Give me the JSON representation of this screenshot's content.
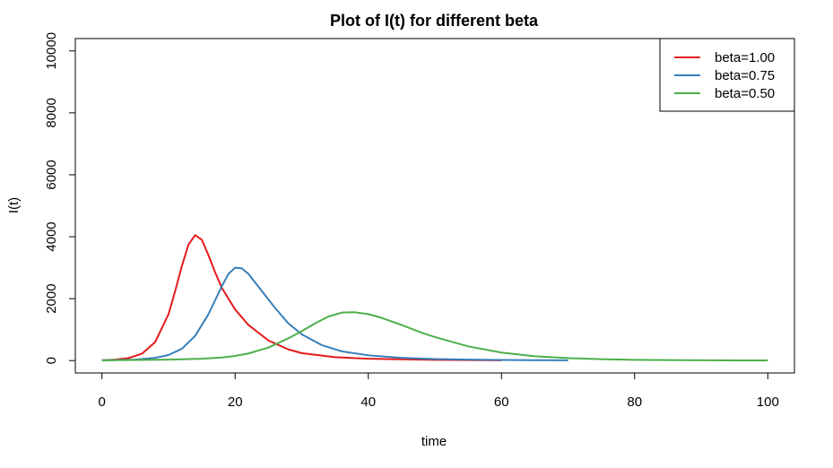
{
  "chart_data": {
    "type": "line",
    "title": "Plot of I(t) for different beta",
    "xlabel": "time",
    "ylabel": "I(t)",
    "xlim": [
      -4,
      104
    ],
    "ylim": [
      -400,
      10400
    ],
    "x_ticks": [
      0,
      20,
      40,
      60,
      80,
      100
    ],
    "y_ticks": [
      0,
      2000,
      4000,
      6000,
      8000,
      10000
    ],
    "grid": false,
    "legend_position": "top-right",
    "series": [
      {
        "name": "beta=1.00",
        "color": "#e41a1c",
        "points": [
          [
            0,
            10
          ],
          [
            2,
            30
          ],
          [
            4,
            80
          ],
          [
            6,
            220
          ],
          [
            8,
            600
          ],
          [
            10,
            1500
          ],
          [
            11,
            2250
          ],
          [
            12,
            3050
          ],
          [
            13,
            3750
          ],
          [
            14,
            4050
          ],
          [
            15,
            3900
          ],
          [
            16,
            3400
          ],
          [
            17,
            2850
          ],
          [
            18,
            2350
          ],
          [
            20,
            1650
          ],
          [
            22,
            1150
          ],
          [
            25,
            650
          ],
          [
            28,
            360
          ],
          [
            30,
            240
          ],
          [
            35,
            110
          ],
          [
            40,
            60
          ],
          [
            45,
            40
          ],
          [
            50,
            25
          ],
          [
            55,
            15
          ],
          [
            60,
            10
          ]
        ]
      },
      {
        "name": "beta=0.75",
        "color": "#377eb8",
        "points": [
          [
            0,
            10
          ],
          [
            5,
            30
          ],
          [
            8,
            90
          ],
          [
            10,
            180
          ],
          [
            12,
            380
          ],
          [
            14,
            800
          ],
          [
            16,
            1500
          ],
          [
            18,
            2400
          ],
          [
            19,
            2800
          ],
          [
            20,
            3000
          ],
          [
            21,
            2980
          ],
          [
            22,
            2800
          ],
          [
            24,
            2250
          ],
          [
            26,
            1700
          ],
          [
            28,
            1200
          ],
          [
            30,
            850
          ],
          [
            33,
            500
          ],
          [
            36,
            300
          ],
          [
            40,
            170
          ],
          [
            45,
            90
          ],
          [
            50,
            50
          ],
          [
            55,
            30
          ],
          [
            60,
            20
          ],
          [
            65,
            12
          ],
          [
            70,
            8
          ]
        ]
      },
      {
        "name": "beta=0.50",
        "color": "#4daf4a",
        "points": [
          [
            0,
            10
          ],
          [
            10,
            30
          ],
          [
            15,
            60
          ],
          [
            18,
            100
          ],
          [
            20,
            150
          ],
          [
            22,
            230
          ],
          [
            25,
            420
          ],
          [
            28,
            720
          ],
          [
            30,
            950
          ],
          [
            32,
            1200
          ],
          [
            34,
            1420
          ],
          [
            36,
            1550
          ],
          [
            38,
            1560
          ],
          [
            40,
            1500
          ],
          [
            42,
            1380
          ],
          [
            45,
            1150
          ],
          [
            48,
            900
          ],
          [
            50,
            760
          ],
          [
            55,
            460
          ],
          [
            60,
            260
          ],
          [
            65,
            140
          ],
          [
            70,
            80
          ],
          [
            75,
            45
          ],
          [
            80,
            25
          ],
          [
            88,
            12
          ],
          [
            95,
            6
          ],
          [
            100,
            4
          ]
        ]
      }
    ]
  }
}
